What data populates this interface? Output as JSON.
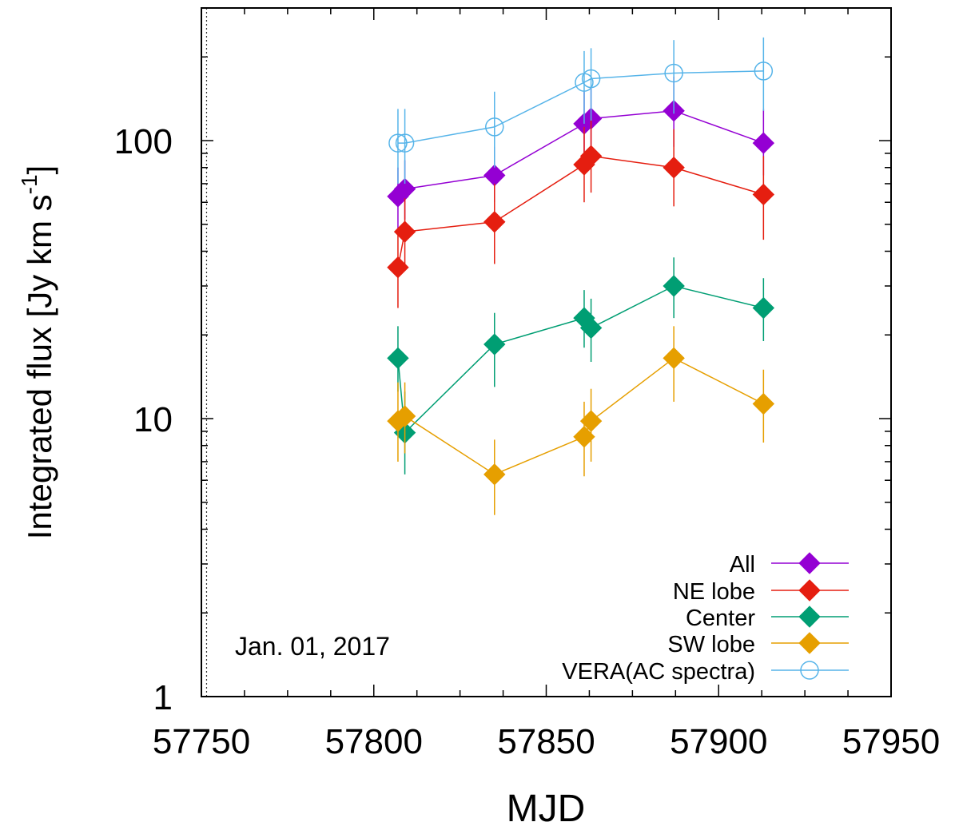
{
  "chart_data": {
    "type": "line",
    "xlabel": "MJD",
    "ylabel": "Integrated flux [Jy km s",
    "ylabel_sup": "-1",
    "ylabel_end": "]",
    "xlim": [
      57750,
      57950
    ],
    "ylim": [
      1,
      300
    ],
    "yscale": "log",
    "grid": false,
    "legend_position": "bottom-right",
    "x_ticks": [
      {
        "value": 57750,
        "label": "57750"
      },
      {
        "value": 57800,
        "label": "57800"
      },
      {
        "value": 57850,
        "label": "57850"
      },
      {
        "value": 57900,
        "label": "57900"
      },
      {
        "value": 57950,
        "label": "57950"
      }
    ],
    "y_ticks": [
      {
        "value": 1,
        "label": "1"
      },
      {
        "value": 10,
        "label": "10"
      },
      {
        "value": 100,
        "label": "100"
      }
    ],
    "reference_line": {
      "x": 57751.5
    },
    "annotation": "Jan. 01, 2017",
    "series": [
      {
        "name": "All",
        "color": "#9400d3",
        "marker": "diamond",
        "x": [
          57807,
          57809,
          57835,
          57861,
          57863,
          57887,
          57913
        ],
        "y": [
          63,
          67,
          75,
          115,
          120,
          128,
          98
        ],
        "err": [
          [
            48,
            80
          ],
          [
            52,
            85
          ],
          [
            60,
            95
          ],
          [
            85,
            150
          ],
          [
            90,
            155
          ],
          [
            95,
            170
          ],
          [
            75,
            130
          ]
        ]
      },
      {
        "name": "NE lobe",
        "color": "#e51e10",
        "marker": "diamond",
        "x": [
          57807,
          57809,
          57835,
          57861,
          57863,
          57887,
          57913
        ],
        "y": [
          35,
          47,
          51,
          82,
          88,
          80,
          64
        ],
        "err": [
          [
            25,
            48
          ],
          [
            35,
            62
          ],
          [
            36,
            70
          ],
          [
            60,
            112
          ],
          [
            65,
            120
          ],
          [
            58,
            110
          ],
          [
            44,
            88
          ]
        ]
      },
      {
        "name": "Center",
        "color": "#009e73",
        "marker": "diamond",
        "x": [
          57807,
          57809,
          57835,
          57861,
          57863,
          57887,
          57913
        ],
        "y": [
          16.5,
          8.9,
          18.5,
          23,
          21.2,
          30,
          25
        ],
        "err": [
          [
            12.5,
            21.5
          ],
          [
            6.3,
            12.5
          ],
          [
            13,
            24
          ],
          [
            18,
            29
          ],
          [
            16,
            27
          ],
          [
            23,
            38
          ],
          [
            19,
            32
          ]
        ]
      },
      {
        "name": "SW lobe",
        "color": "#e69f00",
        "marker": "diamond",
        "x": [
          57807,
          57809,
          57835,
          57861,
          57863,
          57887,
          57913
        ],
        "y": [
          9.8,
          10.2,
          6.3,
          8.6,
          9.8,
          16.5,
          11.3
        ],
        "err": [
          [
            7,
            13.5
          ],
          [
            7.5,
            13.5
          ],
          [
            4.5,
            8.4
          ],
          [
            6.2,
            11.5
          ],
          [
            7,
            12.8
          ],
          [
            11.5,
            21.5
          ],
          [
            8.2,
            15
          ]
        ]
      },
      {
        "name": "VERA(AC spectra)",
        "color": "#56b4e9",
        "marker": "circle",
        "x": [
          57807,
          57809,
          57835,
          57861,
          57863,
          57887,
          57913
        ],
        "y": [
          98,
          98,
          112,
          162,
          167,
          175,
          178
        ],
        "err": [
          [
            70,
            130
          ],
          [
            70,
            130
          ],
          [
            80,
            150
          ],
          [
            115,
            210
          ],
          [
            118,
            215
          ],
          [
            125,
            230
          ],
          [
            128,
            235
          ]
        ]
      }
    ]
  }
}
